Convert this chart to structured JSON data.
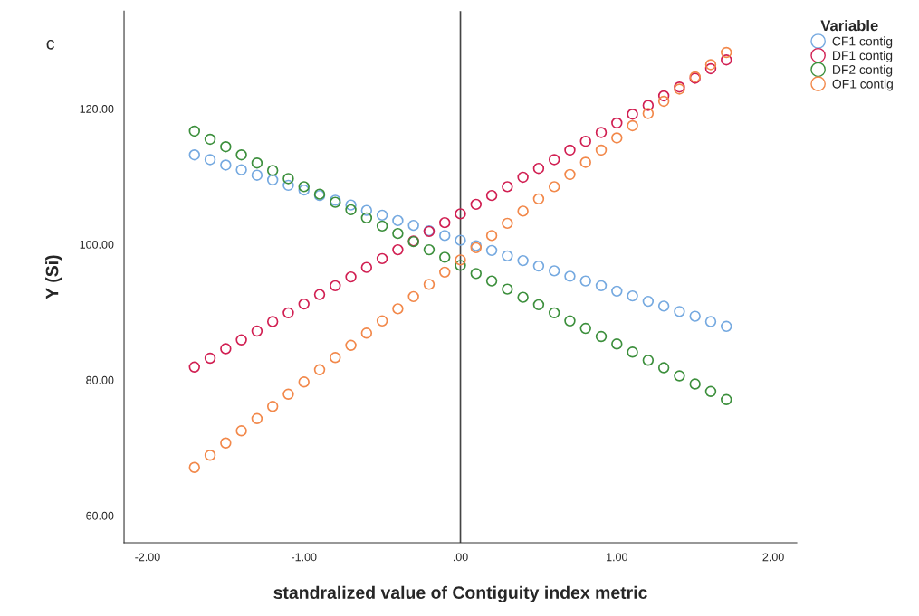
{
  "chart_data": {
    "type": "scatter",
    "xlabel": "standralized value of Contiguity index metric",
    "ylabel": "Y (Si)",
    "legend_title": "Variable",
    "legend": "top right",
    "marker": "circle",
    "grid": false,
    "annotations": [
      "c"
    ],
    "x": [
      -1.7,
      -1.6,
      -1.5,
      -1.4,
      -1.3,
      -1.2,
      -1.1,
      -1.0,
      -0.9,
      -0.8,
      -0.7,
      -0.6,
      -0.5,
      -0.4,
      -0.3,
      -0.2,
      -0.1,
      0.0,
      0.1,
      0.2,
      0.3,
      0.4,
      0.5,
      0.6,
      0.7,
      0.8,
      0.9,
      1.0,
      1.1,
      1.2,
      1.3,
      1.4,
      1.5,
      1.6,
      1.7
    ],
    "series": [
      {
        "name": "CF1 contig",
        "color": "#75a9e0",
        "values": [
          113.2,
          112.5,
          111.7,
          111.0,
          110.2,
          109.5,
          108.7,
          108.0,
          107.2,
          106.5,
          105.8,
          105.0,
          104.3,
          103.5,
          102.8,
          102.0,
          101.3,
          100.6,
          99.8,
          99.1,
          98.3,
          97.6,
          96.8,
          96.1,
          95.3,
          94.6,
          93.9,
          93.1,
          92.4,
          91.6,
          90.9,
          90.1,
          89.4,
          88.6,
          87.9
        ]
      },
      {
        "name": "DF1 contig",
        "color": "#d11f52",
        "values": [
          81.9,
          83.2,
          84.6,
          85.9,
          87.2,
          88.6,
          89.9,
          91.2,
          92.6,
          93.9,
          95.2,
          96.6,
          97.9,
          99.2,
          100.5,
          101.9,
          103.2,
          104.5,
          105.9,
          107.2,
          108.5,
          109.9,
          111.2,
          112.5,
          113.9,
          115.2,
          116.5,
          117.9,
          119.2,
          120.5,
          121.9,
          123.2,
          124.5,
          125.9,
          127.2
        ]
      },
      {
        "name": "DF2 contig",
        "color": "#3c8f3c",
        "values": [
          116.7,
          115.5,
          114.4,
          113.2,
          112.0,
          110.9,
          109.7,
          108.5,
          107.4,
          106.2,
          105.1,
          103.9,
          102.7,
          101.6,
          100.4,
          99.2,
          98.1,
          96.9,
          95.7,
          94.6,
          93.4,
          92.2,
          91.1,
          89.9,
          88.7,
          87.6,
          86.4,
          85.3,
          84.1,
          82.9,
          81.8,
          80.6,
          79.4,
          78.3,
          77.1
        ]
      },
      {
        "name": "OF1 contig",
        "color": "#f2884a",
        "values": [
          67.1,
          68.9,
          70.7,
          72.5,
          74.3,
          76.1,
          77.9,
          79.7,
          81.5,
          83.3,
          85.1,
          86.9,
          88.7,
          90.5,
          92.3,
          94.1,
          95.9,
          97.7,
          99.5,
          101.3,
          103.1,
          104.9,
          106.7,
          108.5,
          110.3,
          112.1,
          113.9,
          115.7,
          117.5,
          119.3,
          121.1,
          122.9,
          124.7,
          126.5,
          128.3
        ]
      }
    ],
    "ref_lines": [
      {
        "axis": "x",
        "value": 0,
        "color": "#444444"
      }
    ],
    "xlim": [
      -2.15,
      2.15
    ],
    "xticks": [
      {
        "value": -2,
        "label": "-2.00"
      },
      {
        "value": -1,
        "label": "-1.00"
      },
      {
        "value": 0,
        "label": ".00"
      },
      {
        "value": 1,
        "label": "1.00"
      },
      {
        "value": 2,
        "label": "2.00"
      }
    ],
    "ylim": [
      56,
      134.4
    ],
    "yticks": [
      {
        "value": 60,
        "label": "60.00"
      },
      {
        "value": 80,
        "label": "80.00"
      },
      {
        "value": 100,
        "label": "100.00"
      },
      {
        "value": 120,
        "label": "120.00"
      }
    ]
  }
}
